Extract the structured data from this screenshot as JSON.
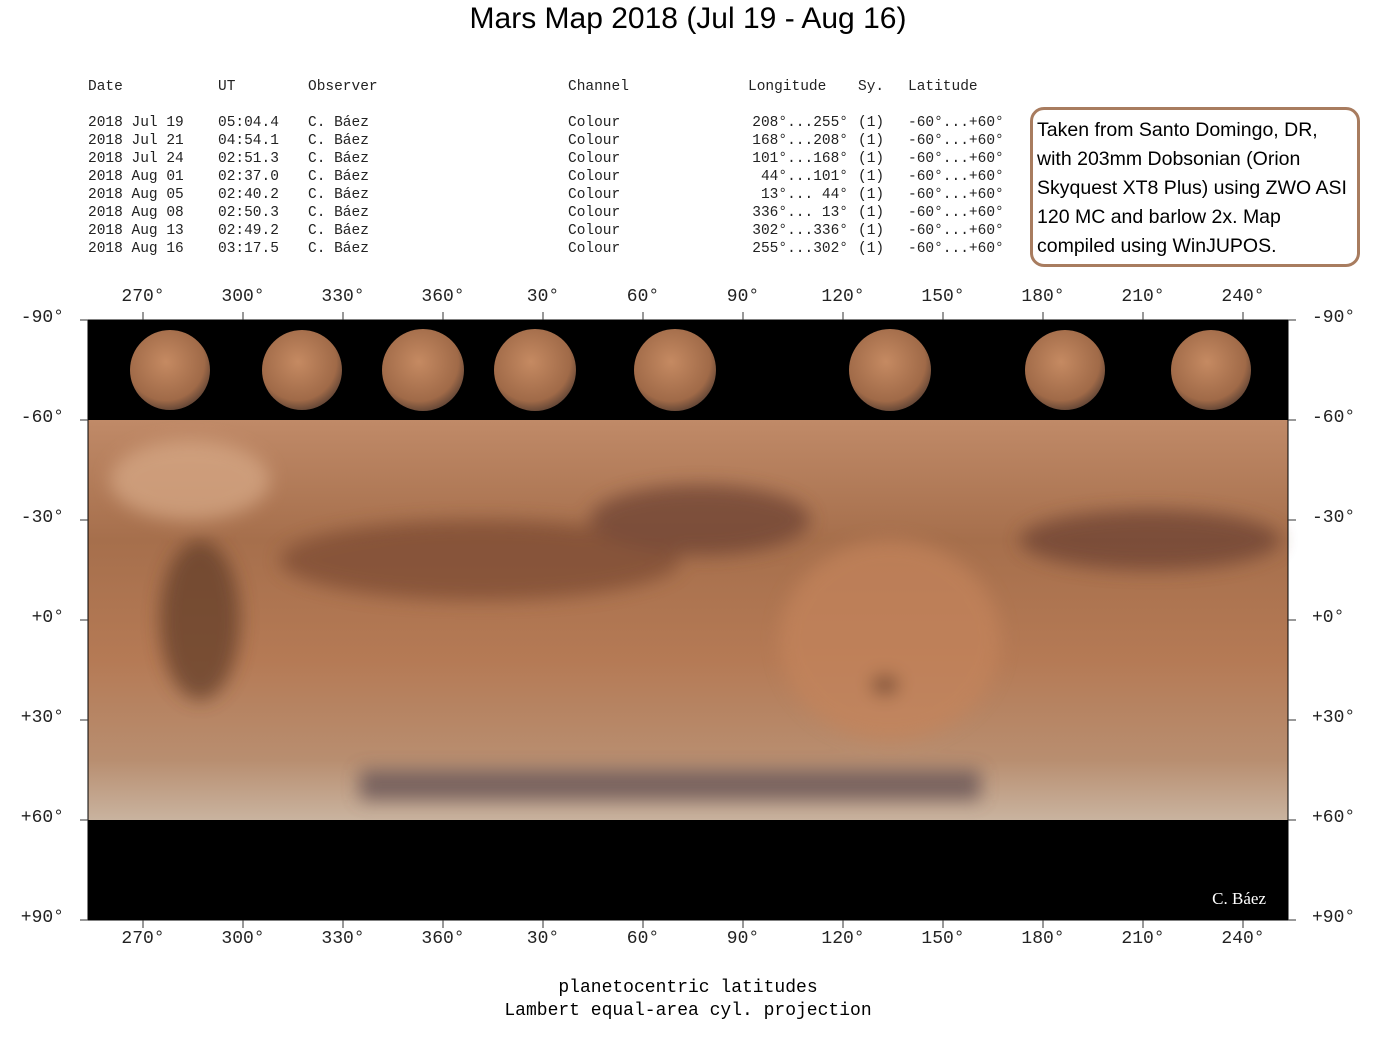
{
  "title": "Mars Map 2018 (Jul 19 - Aug 16)",
  "table": {
    "header": [
      "Date",
      "UT",
      "Observer",
      "Channel",
      "Longitude",
      "Sy.",
      "Latitude"
    ],
    "rows": [
      [
        "2018 Jul 19",
        "05:04.4",
        "C. Báez",
        "Colour",
        "208°...255°",
        "(1)",
        "-60°...+60°"
      ],
      [
        "2018 Jul 21",
        "04:54.1",
        "C. Báez",
        "Colour",
        "168°...208°",
        "(1)",
        "-60°...+60°"
      ],
      [
        "2018 Jul 24",
        "02:51.3",
        "C. Báez",
        "Colour",
        "101°...168°",
        "(1)",
        "-60°...+60°"
      ],
      [
        "2018 Aug 01",
        "02:37.0",
        "C. Báez",
        "Colour",
        " 44°...101°",
        "(1)",
        "-60°...+60°"
      ],
      [
        "2018 Aug 05",
        "02:40.2",
        "C. Báez",
        "Colour",
        " 13°... 44°",
        "(1)",
        "-60°...+60°"
      ],
      [
        "2018 Aug 08",
        "02:50.3",
        "C. Báez",
        "Colour",
        "336°... 13°",
        "(1)",
        "-60°...+60°"
      ],
      [
        "2018 Aug 13",
        "02:49.2",
        "C. Báez",
        "Colour",
        "302°...336°",
        "(1)",
        "-60°...+60°"
      ],
      [
        "2018 Aug 16",
        "03:17.5",
        "C. Báez",
        "Colour",
        "255°...302°",
        "(1)",
        "-60°...+60°"
      ]
    ]
  },
  "note": "Taken from Santo Domingo, DR, with 203mm Dobsonian (Orion Skyquest XT8 Plus) using ZWO ASI 120 MC and barlow 2x. Map compiled using WinJUPOS.",
  "map": {
    "longitude_labels": [
      "270°",
      "300°",
      "330°",
      "360°",
      "30°",
      "60°",
      "90°",
      "120°",
      "150°",
      "180°",
      "210°",
      "240°"
    ],
    "latitude_labels": [
      "-90°",
      "-60°",
      "-30°",
      "+0°",
      "+30°",
      "+60°",
      "+90°"
    ],
    "signature": "C. Báez"
  },
  "footer": [
    "planetocentric latitudes",
    "Lambert equal-area cyl. projection"
  ]
}
